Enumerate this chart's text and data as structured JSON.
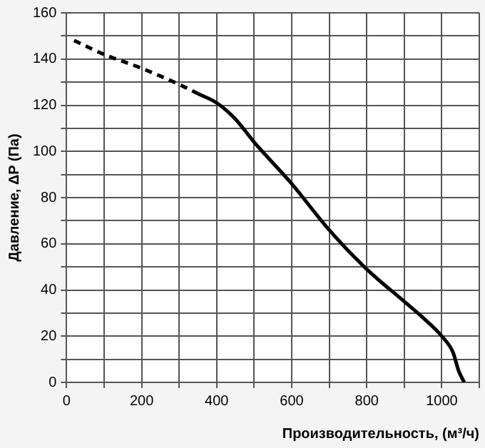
{
  "chart_data": {
    "type": "line",
    "xlabel": "Производительность, (м³/ч)",
    "ylabel": "Давление, ΔP (Па)",
    "xlim": [
      0,
      1100
    ],
    "ylim": [
      0,
      160
    ],
    "xticks": [
      0,
      {
        "value": 100,
        "label": null
      },
      200,
      {
        "value": 300,
        "label": null
      },
      400,
      {
        "value": 500,
        "label": null
      },
      600,
      {
        "value": 700,
        "label": null
      },
      800,
      {
        "value": 900,
        "label": null
      },
      1000,
      {
        "value": 1100,
        "label": null
      }
    ],
    "yticks": [
      0,
      {
        "value": 10,
        "label": null
      },
      20,
      {
        "value": 30,
        "label": null
      },
      40,
      {
        "value": 50,
        "label": null
      },
      60,
      {
        "value": 70,
        "label": null
      },
      80,
      {
        "value": 90,
        "label": null
      },
      100,
      {
        "value": 110,
        "label": null
      },
      120,
      {
        "value": 130,
        "label": null
      },
      140,
      {
        "value": 150,
        "label": null
      },
      160
    ],
    "grid": true,
    "legend": false,
    "marker": "none",
    "series": [
      {
        "color": "#000000",
        "line_style": "dashed",
        "x": [
          20,
          100,
          200,
          300,
          350
        ],
        "values": [
          148,
          142,
          136,
          129,
          125
        ]
      },
      {
        "color": "#000000",
        "line_style": "solid",
        "x": [
          350,
          400,
          450,
          500,
          600,
          700,
          800,
          900,
          950,
          1000,
          1030,
          1045,
          1060
        ],
        "values": [
          125,
          121,
          114,
          104,
          86,
          66,
          49,
          35,
          28,
          20,
          13,
          5,
          0
        ]
      }
    ]
  }
}
